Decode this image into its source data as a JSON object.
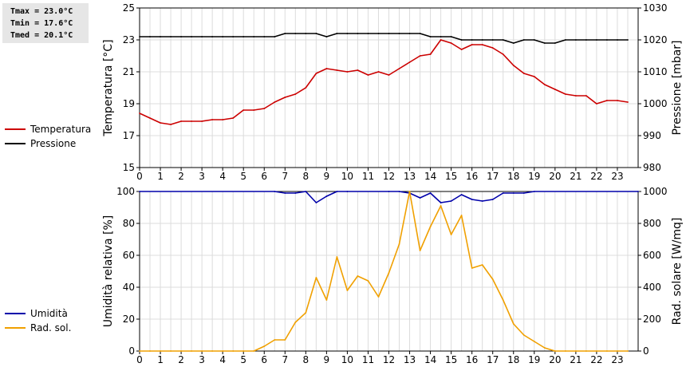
{
  "stats": {
    "tmax": "Tmax = 23.0°C",
    "tmin": "Tmin = 17.6°C",
    "tmed": "Tmed = 20.1°C"
  },
  "legend_top": [
    {
      "label": "Temperatura",
      "color": "#cc0000"
    },
    {
      "label": "Pressione",
      "color": "#000000"
    }
  ],
  "legend_bottom": [
    {
      "label": "Umidità",
      "color": "#0000aa"
    },
    {
      "label": "Rad. sol.",
      "color": "#f0a000"
    }
  ],
  "chart_data": [
    {
      "type": "line",
      "xlim": [
        0,
        24
      ],
      "xticks": [
        "0",
        "1",
        "2",
        "3",
        "4",
        "5",
        "6",
        "7",
        "8",
        "9",
        "10",
        "11",
        "12",
        "13",
        "14",
        "15",
        "16",
        "17",
        "18",
        "19",
        "20",
        "21",
        "22",
        "23"
      ],
      "ylabel_left": "Temperatura [°C]",
      "ylabel_right": "Pressione [mbar]",
      "ylim_left": [
        15,
        25
      ],
      "yticks_left": [
        "15",
        "17",
        "19",
        "21",
        "23",
        "25"
      ],
      "ylim_right": [
        980,
        1030
      ],
      "yticks_right": [
        "980",
        "990",
        "1000",
        "1010",
        "1020",
        "1030"
      ],
      "grid": true,
      "series": [
        {
          "name": "Temperatura",
          "axis": "left",
          "color": "#cc0000",
          "x": [
            0,
            0.5,
            1,
            1.5,
            2,
            2.5,
            3,
            3.5,
            4,
            4.5,
            5,
            5.5,
            6,
            6.5,
            7,
            7.5,
            8,
            8.5,
            9,
            9.5,
            10,
            10.5,
            11,
            11.5,
            12,
            12.5,
            13,
            13.5,
            14,
            14.5,
            15,
            15.5,
            16,
            16.5,
            17,
            17.5,
            18,
            18.5,
            19,
            19.5,
            20,
            20.5,
            21,
            21.5,
            22,
            22.5,
            23,
            23.5
          ],
          "y": [
            18.4,
            18.1,
            17.8,
            17.7,
            17.9,
            17.9,
            17.9,
            18.0,
            18.0,
            18.1,
            18.6,
            18.6,
            18.7,
            19.1,
            19.4,
            19.6,
            20.0,
            20.9,
            21.2,
            21.1,
            21.0,
            21.1,
            20.8,
            21.0,
            20.8,
            21.2,
            21.6,
            22.0,
            22.1,
            23.0,
            22.8,
            22.4,
            22.7,
            22.7,
            22.5,
            22.1,
            21.4,
            20.9,
            20.7,
            20.2,
            19.9,
            19.6,
            19.5,
            19.5,
            19.0,
            19.2,
            19.2,
            19.1
          ]
        },
        {
          "name": "Pressione",
          "axis": "right",
          "color": "#000000",
          "x": [
            0,
            0.5,
            1,
            1.5,
            2,
            2.5,
            3,
            3.5,
            4,
            4.5,
            5,
            5.5,
            6,
            6.5,
            7,
            7.5,
            8,
            8.5,
            9,
            9.5,
            10,
            10.5,
            11,
            11.5,
            12,
            12.5,
            13,
            13.5,
            14,
            14.5,
            15,
            15.5,
            16,
            16.5,
            17,
            17.5,
            18,
            18.5,
            19,
            19.5,
            20,
            20.5,
            21,
            21.5,
            22,
            22.5,
            23,
            23.5
          ],
          "y": [
            1021,
            1021,
            1021,
            1021,
            1021,
            1021,
            1021,
            1021,
            1021,
            1021,
            1021,
            1021,
            1021,
            1021,
            1022,
            1022,
            1022,
            1022,
            1021,
            1022,
            1022,
            1022,
            1022,
            1022,
            1022,
            1022,
            1022,
            1022,
            1021,
            1021,
            1021,
            1020,
            1020,
            1020,
            1020,
            1020,
            1019,
            1020,
            1020,
            1019,
            1019,
            1020,
            1020,
            1020,
            1020,
            1020,
            1020,
            1020
          ]
        }
      ]
    },
    {
      "type": "line",
      "xlim": [
        0,
        24
      ],
      "xticks": [
        "0",
        "1",
        "2",
        "3",
        "4",
        "5",
        "6",
        "7",
        "8",
        "9",
        "10",
        "11",
        "12",
        "13",
        "14",
        "15",
        "16",
        "17",
        "18",
        "19",
        "20",
        "21",
        "22",
        "23"
      ],
      "ylabel_left": "Umidità relativa [%]",
      "ylabel_right": "Rad. solare [W/mq]",
      "ylim_left": [
        0,
        100
      ],
      "yticks_left": [
        "0",
        "20",
        "40",
        "60",
        "80",
        "100"
      ],
      "ylim_right": [
        0,
        1000
      ],
      "yticks_right": [
        "0",
        "200",
        "400",
        "600",
        "800",
        "1000"
      ],
      "grid": true,
      "series": [
        {
          "name": "Umidità",
          "axis": "left",
          "color": "#0000aa",
          "x": [
            0,
            6.5,
            7,
            7.5,
            8,
            8.5,
            9,
            9.5,
            10,
            12,
            12.5,
            13,
            13.5,
            14,
            14.5,
            15,
            15.5,
            16,
            16.5,
            17,
            17.5,
            18,
            18.5,
            19,
            24
          ],
          "y": [
            100,
            100,
            99,
            99,
            100,
            93,
            97,
            100,
            100,
            100,
            100,
            99,
            96,
            99,
            93,
            94,
            98,
            95,
            94,
            95,
            99,
            99,
            99,
            100,
            100
          ]
        },
        {
          "name": "Rad. sol.",
          "axis": "right",
          "color": "#f0a000",
          "x": [
            0,
            0.5,
            1,
            1.5,
            2,
            2.5,
            3,
            3.5,
            4,
            4.5,
            5,
            5.5,
            6,
            6.5,
            7,
            7.5,
            8,
            8.5,
            9,
            9.5,
            10,
            10.5,
            11,
            11.5,
            12,
            12.5,
            13,
            13.5,
            14,
            14.5,
            15,
            15.5,
            16,
            16.5,
            17,
            17.5,
            18,
            18.5,
            19,
            19.5,
            20,
            20.5,
            21,
            21.5,
            22,
            22.5,
            23,
            23.5
          ],
          "y": [
            0,
            0,
            0,
            0,
            0,
            0,
            0,
            0,
            0,
            0,
            0,
            0,
            30,
            70,
            70,
            180,
            240,
            460,
            320,
            590,
            380,
            470,
            440,
            340,
            490,
            670,
            1000,
            630,
            780,
            910,
            730,
            850,
            520,
            540,
            450,
            320,
            170,
            100,
            60,
            20,
            0,
            0,
            0,
            0,
            0,
            0,
            0,
            0
          ]
        }
      ]
    }
  ]
}
